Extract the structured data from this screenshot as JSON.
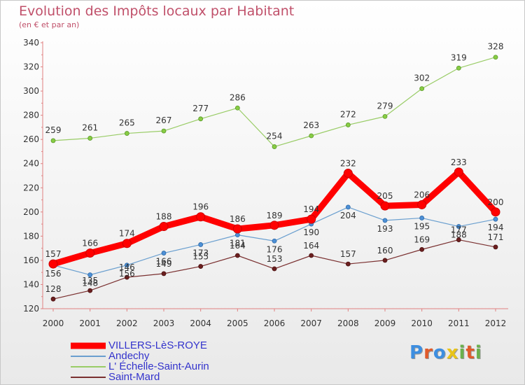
{
  "chart_data": {
    "type": "line",
    "title": "Evolution des Impôts locaux par Habitant",
    "subtitle": "(en € et par an)",
    "xlabel": "",
    "ylabel": "",
    "x": [
      "2000",
      "2001",
      "2002",
      "2003",
      "2004",
      "2005",
      "2006",
      "2007",
      "2008",
      "2009",
      "2010",
      "2011",
      "2012"
    ],
    "ylim": [
      120,
      340
    ],
    "yticks": [
      120,
      140,
      160,
      180,
      200,
      220,
      240,
      260,
      280,
      300,
      320,
      340
    ],
    "grid": false,
    "legend_position": "bottom-left",
    "series": [
      {
        "name": "VILLERS-LèS-ROYE",
        "color": "#ff0000",
        "values": [
          157,
          166,
          174,
          188,
          196,
          186,
          189,
          194,
          232,
          205,
          206,
          233,
          200
        ]
      },
      {
        "name": "Andechy",
        "color": "#6a9fcf",
        "values": [
          156,
          148,
          156,
          166,
          173,
          181,
          176,
          190,
          204,
          193,
          195,
          188,
          194
        ]
      },
      {
        "name": "L' Échelle-Saint-Aurin",
        "color": "#99cc66",
        "values": [
          259,
          261,
          265,
          267,
          277,
          286,
          254,
          263,
          272,
          279,
          302,
          319,
          328
        ]
      },
      {
        "name": "Saint-Mard",
        "color": "#7a3030",
        "values": [
          128,
          135,
          146,
          149,
          155,
          164,
          153,
          164,
          157,
          160,
          169,
          177,
          171
        ]
      }
    ]
  },
  "logo": {
    "letters": [
      "P",
      "r",
      "o",
      "x",
      "i",
      "t",
      "i"
    ],
    "colors": [
      "#3d8ee0",
      "#e05a2a",
      "#3d8ee0",
      "#e8c41a",
      "#6ab04c",
      "#e05a2a",
      "#6ab04c"
    ]
  }
}
